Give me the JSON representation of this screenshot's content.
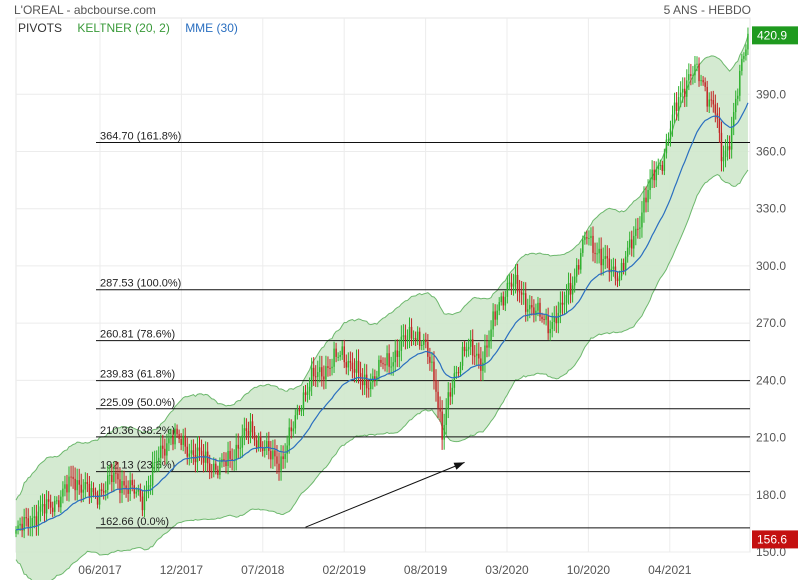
{
  "header": {
    "title": "L'OREAL - abcbourse.com",
    "timeframe": "5 ANS - HEBDO"
  },
  "legend": [
    {
      "label": "PIVOTS",
      "color": "#333333"
    },
    {
      "label": "KELTNER (20, 2)",
      "color": "#3a9a3a"
    },
    {
      "label": "MME (30)",
      "color": "#2a6fc0"
    }
  ],
  "colors": {
    "up": "#2db02d",
    "down": "#c22424",
    "band_fill": "#cfe8cc",
    "band_edge": "#6db86d",
    "ema": "#2a6fc0",
    "last_badge": "#1f9a1f",
    "low_badge": "#c41010"
  },
  "chart_data": {
    "type": "candlestick",
    "x_tick_labels": [
      "06/2017",
      "12/2017",
      "07/2018",
      "02/2019",
      "08/2019",
      "03/2020",
      "10/2020",
      "04/2021"
    ],
    "y_axis": {
      "min": 150,
      "max": 430,
      "ticks": [
        150,
        180,
        210,
        240,
        270,
        300,
        330,
        360,
        390
      ]
    },
    "y_tick_labels": [
      "150.0",
      "180.0",
      "210.0",
      "240.0",
      "270.0",
      "300.0",
      "330.0",
      "360.0",
      "390.0"
    ],
    "last_price": 420.9,
    "last_price_label": "420.9",
    "low_price": 156.6,
    "low_price_label": "156.6",
    "fibonacci_levels": [
      {
        "value": 162.66,
        "label": "162.66  (0.0%)"
      },
      {
        "value": 192.13,
        "label": "192.13  (23.6%)"
      },
      {
        "value": 210.36,
        "label": "210.36  (38.2%)"
      },
      {
        "value": 225.09,
        "label": "225.09  (50.0%)"
      },
      {
        "value": 239.83,
        "label": "239.83  (61.8%)"
      },
      {
        "value": 260.81,
        "label": "260.81  (78.6%)"
      },
      {
        "value": 287.53,
        "label": "287.53  (100.0%)"
      },
      {
        "value": 364.7,
        "label": "364.70  (161.8%)"
      }
    ],
    "price_path": [
      [
        0,
        160
      ],
      [
        8,
        168
      ],
      [
        16,
        174
      ],
      [
        23,
        180
      ],
      [
        28,
        189
      ],
      [
        33,
        184
      ],
      [
        38,
        179
      ],
      [
        43,
        184
      ],
      [
        48,
        189
      ],
      [
        53,
        186
      ],
      [
        58,
        181
      ],
      [
        62,
        178
      ],
      [
        67,
        192
      ],
      [
        72,
        204
      ],
      [
        76,
        212
      ],
      [
        81,
        207
      ],
      [
        86,
        203
      ],
      [
        90,
        200
      ],
      [
        95,
        196
      ],
      [
        100,
        194
      ],
      [
        105,
        199
      ],
      [
        110,
        208
      ],
      [
        115,
        214
      ],
      [
        120,
        207
      ],
      [
        125,
        200
      ],
      [
        130,
        198
      ],
      [
        135,
        212
      ],
      [
        140,
        230
      ],
      [
        145,
        240
      ],
      [
        150,
        245
      ],
      [
        155,
        249
      ],
      [
        160,
        254
      ],
      [
        165,
        248
      ],
      [
        170,
        238
      ],
      [
        175,
        241
      ],
      [
        180,
        248
      ],
      [
        185,
        252
      ],
      [
        190,
        260
      ],
      [
        195,
        266
      ],
      [
        200,
        258
      ],
      [
        203,
        250
      ],
      [
        206,
        238
      ],
      [
        209,
        212
      ],
      [
        212,
        228
      ],
      [
        216,
        245
      ],
      [
        220,
        258
      ],
      [
        224,
        254
      ],
      [
        228,
        250
      ],
      [
        232,
        262
      ],
      [
        237,
        280
      ],
      [
        242,
        292
      ],
      [
        247,
        286
      ],
      [
        252,
        279
      ],
      [
        257,
        273
      ],
      [
        262,
        270
      ],
      [
        267,
        275
      ],
      [
        271,
        288
      ],
      [
        275,
        298
      ],
      [
        280,
        316
      ],
      [
        284,
        310
      ],
      [
        288,
        302
      ],
      [
        292,
        298
      ],
      [
        296,
        296
      ],
      [
        300,
        306
      ],
      [
        304,
        318
      ],
      [
        308,
        333
      ],
      [
        313,
        348
      ],
      [
        317,
        356
      ],
      [
        321,
        372
      ],
      [
        325,
        388
      ],
      [
        329,
        398
      ],
      [
        333,
        402
      ],
      [
        337,
        396
      ],
      [
        340,
        388
      ],
      [
        343,
        382
      ],
      [
        346,
        356
      ],
      [
        349,
        362
      ],
      [
        352,
        380
      ],
      [
        355,
        398
      ],
      [
        357,
        410
      ],
      [
        359,
        420.9
      ]
    ],
    "arrow_annotation": {
      "from": {
        "week": 142,
        "value": 163
      },
      "to": {
        "week": 220,
        "value": 197
      }
    }
  }
}
